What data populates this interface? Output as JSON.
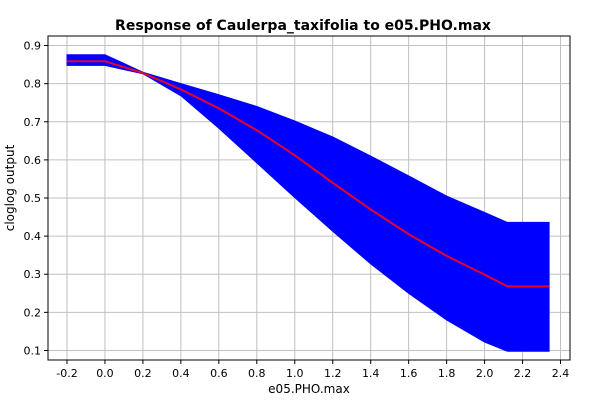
{
  "chart_data": {
    "type": "line",
    "title": "Response of Caulerpa_taxifolia to e05.PHO.max",
    "xlabel": "e05.PHO.max",
    "ylabel": "cloglog output",
    "xlim": [
      -0.3,
      2.45
    ],
    "ylim": [
      0.075,
      0.925
    ],
    "x_ticks": [
      -0.2,
      0.0,
      0.2,
      0.4,
      0.6,
      0.8,
      1.0,
      1.2,
      1.4,
      1.6,
      1.8,
      2.0,
      2.2,
      2.4
    ],
    "x_tick_labels": [
      "-0.2",
      "0.0",
      "0.2",
      "0.4",
      "0.6",
      "0.8",
      "1.0",
      "1.2",
      "1.4",
      "1.6",
      "1.8",
      "2.0",
      "2.2",
      "2.4"
    ],
    "y_ticks": [
      0.1,
      0.2,
      0.3,
      0.4,
      0.5,
      0.6,
      0.7,
      0.8,
      0.9
    ],
    "y_tick_labels": [
      "0.1",
      "0.2",
      "0.3",
      "0.4",
      "0.5",
      "0.6",
      "0.7",
      "0.8",
      "0.9"
    ],
    "grid": true,
    "legend": "none",
    "series": [
      {
        "kind": "line",
        "color": "#e8002a",
        "x": [
          -0.2,
          0.0,
          0.2,
          0.4,
          0.6,
          0.8,
          1.0,
          1.2,
          1.4,
          1.6,
          1.8,
          2.0,
          2.12,
          2.34
        ],
        "y": [
          0.859,
          0.859,
          0.828,
          0.785,
          0.735,
          0.678,
          0.612,
          0.54,
          0.47,
          0.405,
          0.348,
          0.299,
          0.268,
          0.268
        ]
      },
      {
        "kind": "band",
        "color": "#0000ff",
        "x": [
          -0.2,
          0.0,
          0.2,
          0.4,
          0.6,
          0.8,
          1.0,
          1.2,
          1.4,
          1.6,
          1.8,
          2.0,
          2.12,
          2.34
        ],
        "upper": [
          0.876,
          0.876,
          0.83,
          0.8,
          0.771,
          0.74,
          0.702,
          0.66,
          0.61,
          0.558,
          0.505,
          0.462,
          0.436,
          0.436
        ],
        "lower": [
          0.848,
          0.848,
          0.826,
          0.768,
          0.683,
          0.592,
          0.501,
          0.413,
          0.327,
          0.25,
          0.18,
          0.122,
          0.098,
          0.098
        ]
      }
    ]
  }
}
